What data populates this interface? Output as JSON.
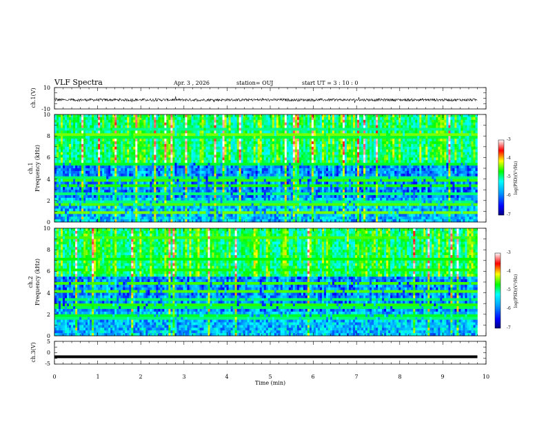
{
  "header": {
    "title": "VLF Spectra",
    "date": "Apr. 3 , 2026",
    "station": "station= OUJ",
    "start": "start UT = 3 : 10 : 0"
  },
  "chart_data": [
    {
      "type": "line",
      "name": "ch.1 waveform",
      "ylabel": "ch.1(V)",
      "ylim": [
        -10,
        10
      ],
      "y_tick_labels": [
        "10",
        "-10"
      ],
      "x_range_min": [
        0,
        9.8
      ],
      "baseline_v": -1.5,
      "noise_amplitude_v": 1.2,
      "color": "#000000"
    },
    {
      "type": "heatmap",
      "name": "ch.1 spectrogram",
      "ylabel_line1": "ch.1",
      "ylabel_line2": "Frequency (kHz)",
      "ylim_khz": [
        0,
        10
      ],
      "y_tick_labels": [
        "0",
        "2",
        "4",
        "6",
        "8",
        "10"
      ],
      "x_range_min": [
        0,
        9.8
      ],
      "colorbar": {
        "label": "log(PSD)(V²/Hz)",
        "range": [
          -7,
          -3
        ],
        "tick_labels": [
          "-3",
          "-4",
          "-5",
          "-6",
          "-7"
        ]
      }
    },
    {
      "type": "heatmap",
      "name": "ch.2 spectrogram",
      "ylabel_line1": "ch.2",
      "ylabel_line2": "Frequency (kHz)",
      "ylim_khz": [
        0,
        10
      ],
      "y_tick_labels": [
        "0",
        "2",
        "4",
        "6",
        "8",
        "10"
      ],
      "x_range_min": [
        0,
        9.8
      ],
      "colorbar": {
        "label": "log(PSD)(V²/Hz)",
        "range": [
          -7,
          -3
        ],
        "tick_labels": [
          "-3",
          "-4",
          "-5",
          "-6",
          "-7"
        ]
      }
    },
    {
      "type": "line",
      "name": "ch.3 waveform",
      "ylabel": "ch.3(V)",
      "ylim": [
        -5,
        5
      ],
      "y_tick_labels": [
        "5",
        "0",
        "-5"
      ],
      "x_range_min": [
        0,
        9.8
      ],
      "baseline_v": -1.8,
      "color": "#000000"
    }
  ],
  "x_axis": {
    "label": "Time (min)",
    "xlim": [
      0,
      10
    ],
    "tick_labels": [
      "0",
      "1",
      "2",
      "3",
      "4",
      "5",
      "6",
      "7",
      "8",
      "9",
      "10"
    ]
  }
}
